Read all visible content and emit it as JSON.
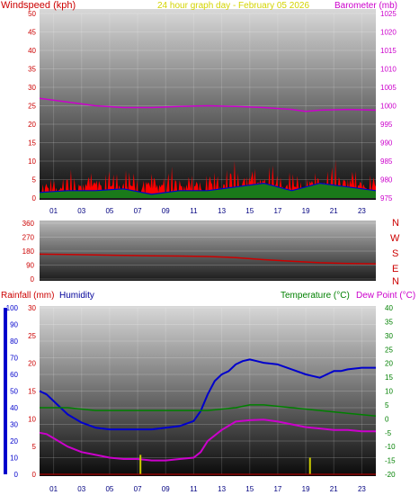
{
  "header": {
    "title": "24 hour graph day - February 05 2026"
  },
  "colors": {
    "wind": "#ff0000",
    "gust": "#ff0000",
    "avgwind": "#0000cc",
    "dirtrace": "#cc0000",
    "barometer": "#cc00cc",
    "humidity": "#0000cc",
    "rainfall": "#cc0000",
    "temperature": "#008000",
    "dewpoint": "#cc00cc",
    "title": "#d4d400",
    "rainbar": "#cccc00"
  },
  "chart_data": [
    {
      "type": "area",
      "title": "24 hour graph day - February 05 2026",
      "left_axis_label": "Windspeed (kph)",
      "right_axis_label": "Barometer (mb)",
      "x_ticks": [
        "01",
        "03",
        "05",
        "07",
        "09",
        "11",
        "13",
        "15",
        "17",
        "19",
        "21",
        "23"
      ],
      "x_range": [
        0,
        24
      ],
      "left_ylim": [
        0,
        50
      ],
      "left_ticks": [
        "0",
        "5",
        "10",
        "15",
        "20",
        "25",
        "30",
        "35",
        "40",
        "45",
        "50"
      ],
      "right_ylim": [
        975,
        1025
      ],
      "right_ticks": [
        "975",
        "980",
        "985",
        "990",
        "995",
        "1000",
        "1005",
        "1010",
        "1015",
        "1020",
        "1025"
      ],
      "series": [
        {
          "name": "Windspeed (kph)",
          "axis": "left",
          "x": [
            0,
            1,
            2,
            3,
            4,
            5,
            6,
            7,
            8,
            9,
            10,
            11,
            12,
            13,
            14,
            15,
            16,
            17,
            18,
            19,
            20,
            21,
            22,
            23,
            24
          ],
          "values": [
            6,
            7,
            9,
            8,
            10,
            9,
            11,
            8,
            9,
            10,
            9,
            8,
            9,
            10,
            12,
            11,
            12,
            10,
            9,
            8,
            10,
            12,
            11,
            9,
            8
          ]
        },
        {
          "name": "Average wind",
          "axis": "left",
          "x": [
            0,
            2,
            4,
            6,
            8,
            10,
            12,
            14,
            16,
            18,
            20,
            22,
            24
          ],
          "values": [
            1.5,
            2,
            2,
            2.5,
            1,
            2,
            2,
            3,
            4,
            2,
            4,
            3,
            2
          ]
        },
        {
          "name": "Barometer (mb)",
          "axis": "right",
          "x": [
            0,
            2,
            4,
            6,
            8,
            10,
            12,
            14,
            16,
            18,
            19,
            20,
            22,
            24
          ],
          "values": [
            1002,
            1001,
            1000,
            999.5,
            999.5,
            999.8,
            1000,
            999.8,
            999.5,
            999,
            998.5,
            998.8,
            999,
            998.8
          ]
        }
      ]
    },
    {
      "type": "line",
      "left_ticks": [
        "0",
        "90",
        "180",
        "270",
        "360"
      ],
      "ylim": [
        0,
        360
      ],
      "compass_labels": [
        "N",
        "W",
        "S",
        "E",
        "N"
      ],
      "series": [
        {
          "name": "Wind direction",
          "x": [
            0,
            2,
            4,
            6,
            8,
            10,
            12,
            14,
            16,
            18,
            20,
            22,
            24
          ],
          "values": [
            160,
            158,
            155,
            152,
            150,
            148,
            145,
            138,
            125,
            115,
            105,
            100,
            97
          ]
        }
      ]
    },
    {
      "type": "line",
      "labels": {
        "rainfall": "Rainfall (mm)",
        "humidity": "Humidity",
        "temperature": "Temperature (°C)",
        "dewpoint": "Dew Point (°C)"
      },
      "x_ticks": [
        "01",
        "03",
        "05",
        "07",
        "09",
        "11",
        "13",
        "15",
        "17",
        "19",
        "21",
        "23"
      ],
      "x_range": [
        0,
        24
      ],
      "humidity_ylim": [
        0,
        100
      ],
      "humidity_ticks": [
        "0",
        "10",
        "20",
        "30",
        "40",
        "50",
        "60",
        "70",
        "80",
        "90",
        "100"
      ],
      "rain_ylim": [
        0,
        30
      ],
      "rain_ticks": [
        "0",
        "5",
        "10",
        "15",
        "20",
        "25",
        "30"
      ],
      "temp_ylim": [
        -20,
        40
      ],
      "temp_ticks": [
        "-20",
        "-15",
        "-10",
        "-5",
        "0",
        "5",
        "10",
        "15",
        "20",
        "25",
        "30",
        "35",
        "40"
      ],
      "series": [
        {
          "name": "Humidity",
          "axis": "humidity",
          "x": [
            0,
            0.5,
            1,
            2,
            3,
            4,
            5,
            6,
            7,
            8,
            9,
            10,
            11,
            11.5,
            12,
            12.5,
            13,
            13.5,
            14,
            14.5,
            15,
            15.5,
            16,
            17,
            18,
            19,
            20,
            20.5,
            21,
            21.5,
            22,
            23,
            24
          ],
          "values": [
            50,
            48,
            44,
            36,
            31,
            28,
            27,
            27,
            27,
            27,
            28,
            29,
            32,
            38,
            48,
            56,
            60,
            62,
            66,
            68,
            69,
            68,
            67,
            66,
            63,
            60,
            58,
            60,
            62,
            62,
            63,
            64,
            64
          ]
        },
        {
          "name": "Temperature (°C)",
          "axis": "temp",
          "x": [
            0,
            2,
            4,
            6,
            8,
            10,
            12,
            14,
            15,
            16,
            18,
            20,
            22,
            24
          ],
          "values": [
            4,
            4,
            3,
            3,
            3,
            3,
            3,
            4,
            5,
            5,
            4,
            3,
            2,
            1
          ]
        },
        {
          "name": "Dew Point (°C)",
          "axis": "temp",
          "x": [
            0,
            0.5,
            1,
            2,
            3,
            4,
            5,
            6,
            7,
            8,
            9,
            10,
            11,
            11.5,
            12,
            13,
            14,
            15,
            16,
            17,
            18,
            19,
            20,
            21,
            22,
            23,
            24
          ],
          "values": [
            -5,
            -5.5,
            -7,
            -10,
            -12,
            -13,
            -14,
            -14.5,
            -14.5,
            -15,
            -15,
            -14.5,
            -14,
            -12,
            -8,
            -4,
            -1,
            -0.5,
            -0.3,
            -1,
            -2,
            -3,
            -3.5,
            -4,
            -4,
            -4.5,
            -4.5
          ]
        },
        {
          "name": "Rainfall (mm)",
          "axis": "rain",
          "x": [
            7.2,
            19.3
          ],
          "values": [
            3.5,
            3
          ]
        }
      ]
    }
  ]
}
